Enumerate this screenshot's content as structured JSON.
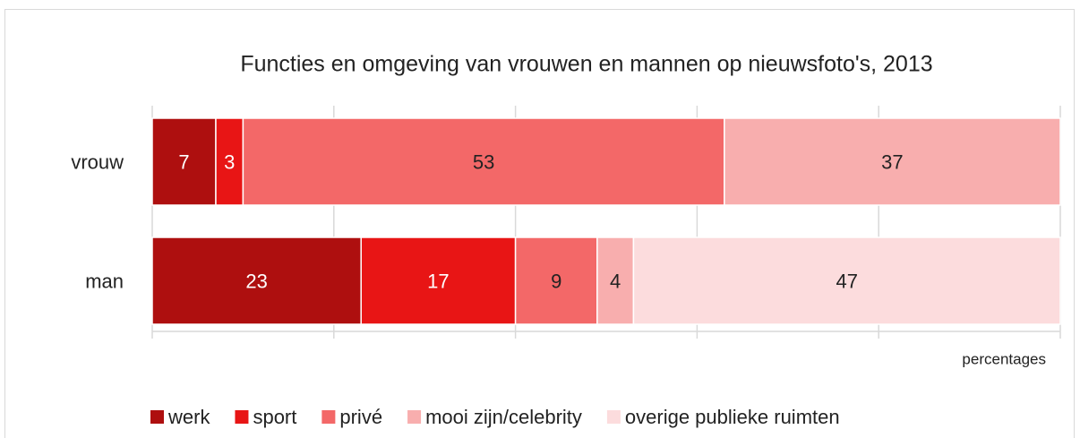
{
  "chart_data": {
    "type": "stacked-bar-horizontal",
    "title": "Functies en omgeving van vrouwen en mannen op nieuwsfoto's, 2013",
    "x_label": "percentages",
    "categories": [
      "vrouw",
      "man"
    ],
    "series": [
      {
        "name": "werk",
        "color": "#ae0f0f",
        "label_color": "#ffffff",
        "values": [
          7,
          23
        ]
      },
      {
        "name": "sport",
        "color": "#e81515",
        "label_color": "#ffffff",
        "values": [
          3,
          17
        ]
      },
      {
        "name": "privé",
        "color": "#f36868",
        "label_color": "#222222",
        "values": [
          53,
          9
        ]
      },
      {
        "name": "mooi zijn/celebrity",
        "color": "#f8aeae",
        "label_color": "#222222",
        "values": [
          37,
          4
        ]
      },
      {
        "name": "overige publieke ruimten",
        "color": "#fcdcdd",
        "label_color": "#222222",
        "values": [
          null,
          47
        ]
      }
    ],
    "xlim": [
      0,
      100
    ],
    "xticks": [
      0,
      20,
      40,
      60,
      80,
      100
    ],
    "grid": true,
    "legend": "bottom"
  }
}
